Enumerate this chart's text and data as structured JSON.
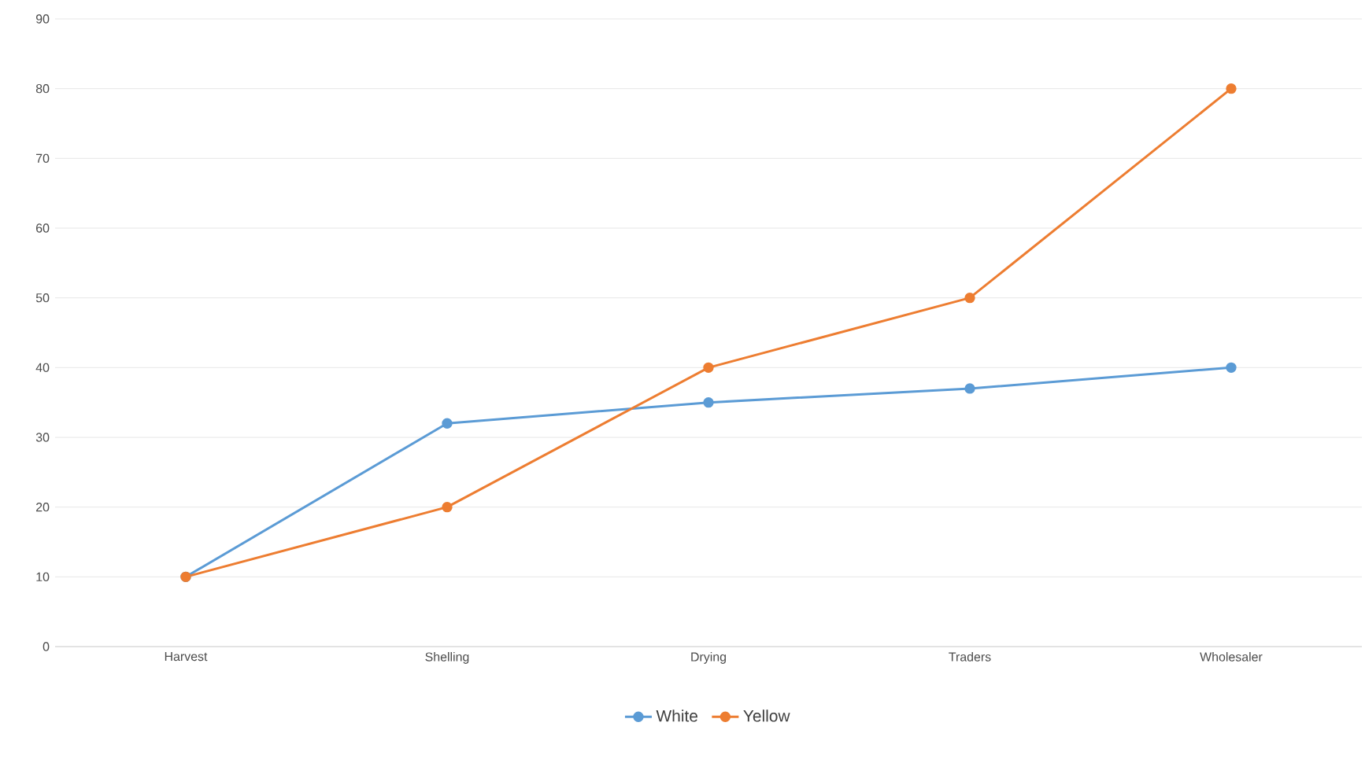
{
  "chart_data": {
    "type": "line",
    "categories": [
      "Harvest",
      "Shelling",
      "Drying",
      "Traders",
      "Wholesaler"
    ],
    "series": [
      {
        "name": "White",
        "color": "#5b9bd5",
        "values": [
          10,
          32,
          35,
          37,
          40
        ]
      },
      {
        "name": "Yellow",
        "color": "#ed7d31",
        "values": [
          10,
          20,
          40,
          50,
          80
        ]
      }
    ],
    "ylim": [
      0,
      90
    ],
    "yticks": [
      0,
      10,
      20,
      30,
      40,
      50,
      60,
      70,
      80,
      90
    ],
    "grid": "y",
    "legend": "bottom",
    "marker": "circle",
    "line_style": "solid"
  }
}
